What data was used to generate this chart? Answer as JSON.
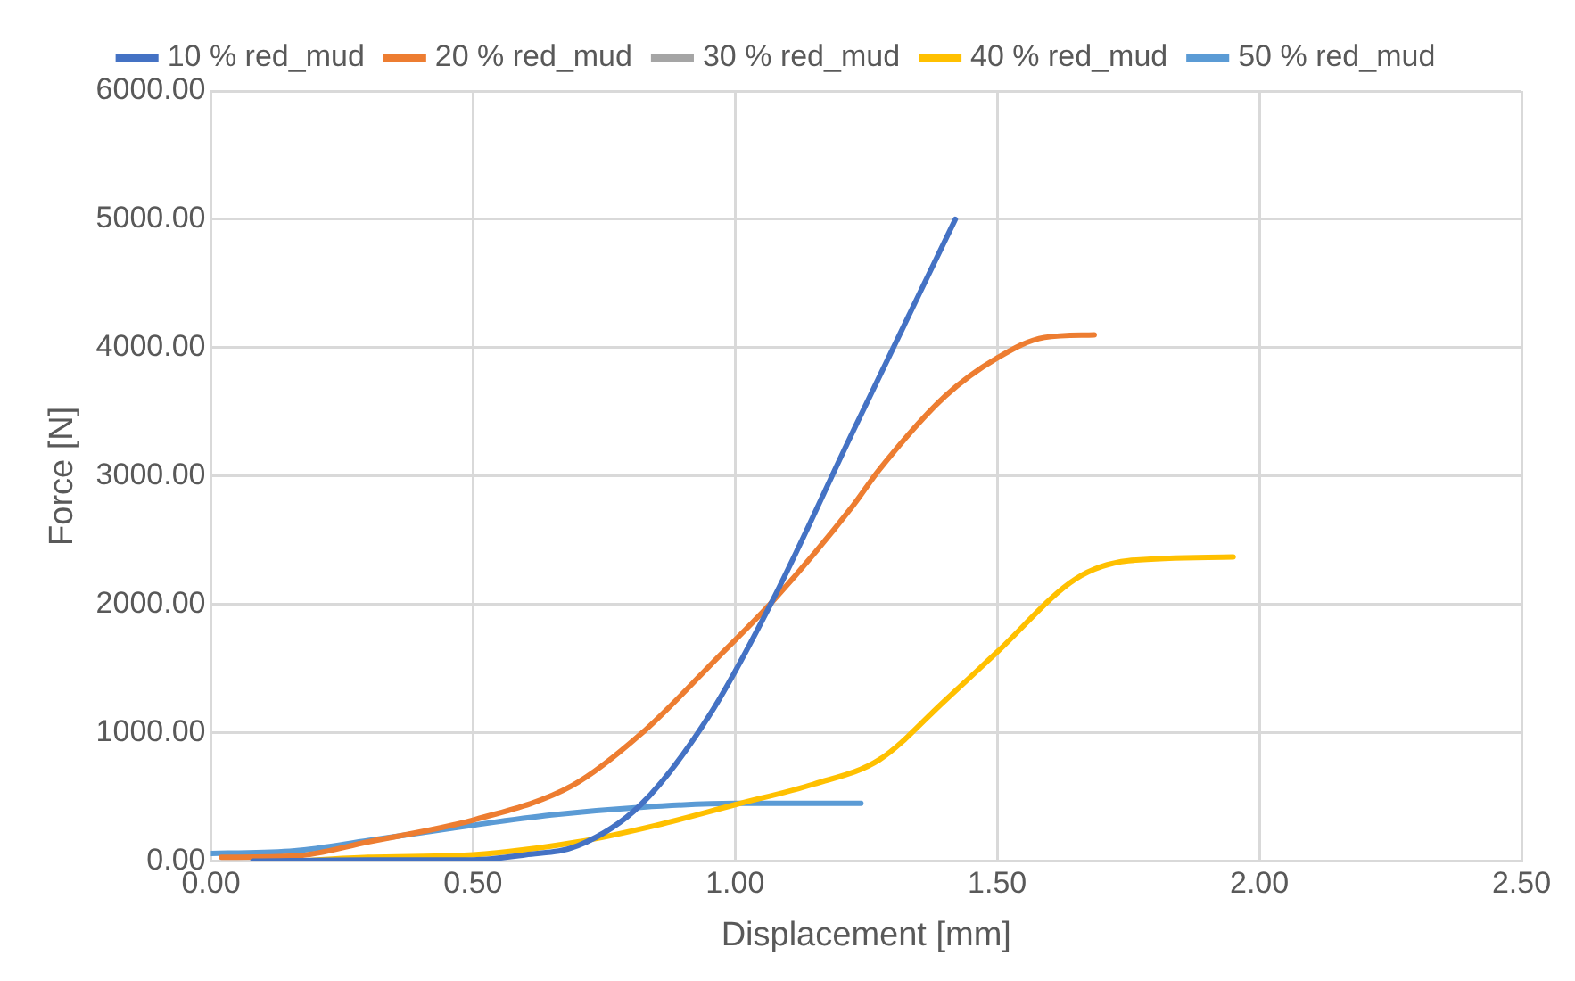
{
  "chart_data": {
    "type": "line",
    "xlabel": "Displacement [mm]",
    "ylabel": "Force [N]",
    "xlim": [
      0,
      2.5
    ],
    "xticks": [
      {
        "value": 0,
        "label": "0.00"
      },
      {
        "value": 0.5,
        "label": "0.50"
      },
      {
        "value": 1,
        "label": "1.00"
      },
      {
        "value": 1.5,
        "label": "1.50"
      },
      {
        "value": 2,
        "label": "2.00"
      },
      {
        "value": 2.5,
        "label": "2.50"
      }
    ],
    "ylim": [
      0,
      6000
    ],
    "yticks": [
      {
        "value": 0,
        "label": "0.00"
      },
      {
        "value": 1000,
        "label": "1000.00"
      },
      {
        "value": 2000,
        "label": "2000.00"
      },
      {
        "value": 3000,
        "label": "3000.00"
      },
      {
        "value": 4000,
        "label": "4000.00"
      },
      {
        "value": 5000,
        "label": "5000.00"
      },
      {
        "value": 6000,
        "label": "6000.00"
      }
    ],
    "grid": true,
    "legend": "top",
    "marker": "none",
    "line_style": "solid",
    "series": [
      {
        "name": "10 % red_mud",
        "color": "#4472c4",
        "x": [
          0.08,
          0.3,
          0.5,
          0.6,
          0.7,
          0.82,
          0.95,
          1.075,
          1.225,
          1.42
        ],
        "values": [
          0,
          10,
          10,
          50,
          120,
          440,
          1130,
          2060,
          3350,
          5000
        ]
      },
      {
        "name": "20 % red_mud",
        "color": "#ed7d31",
        "x": [
          0.02,
          0.16,
          0.3,
          0.5,
          0.69,
          0.82,
          0.97,
          1.075,
          1.225,
          1.275,
          1.4,
          1.5,
          1.59,
          1.685
        ],
        "values": [
          30,
          40,
          150,
          320,
          590,
          990,
          1600,
          2040,
          2770,
          3050,
          3620,
          3920,
          4080,
          4100
        ]
      },
      {
        "name": "30 % red_mud",
        "color": "#a5a5a5"
      },
      {
        "name": "40 % red_mud",
        "color": "#ffc000",
        "x": [
          0.165,
          0.3,
          0.5,
          0.7,
          0.85,
          1.0,
          1.15,
          1.275,
          1.4,
          1.5,
          1.65,
          1.75,
          1.95
        ],
        "values": [
          0,
          30,
          50,
          150,
          280,
          440,
          600,
          790,
          1250,
          1630,
          2200,
          2340,
          2370
        ]
      },
      {
        "name": "50 % red_mud",
        "color": "#5b9bd5",
        "x": [
          0,
          0.16,
          0.3,
          0.5,
          0.65,
          0.82,
          1.0,
          1.24
        ],
        "values": [
          60,
          80,
          160,
          280,
          360,
          420,
          450,
          450
        ]
      }
    ]
  }
}
